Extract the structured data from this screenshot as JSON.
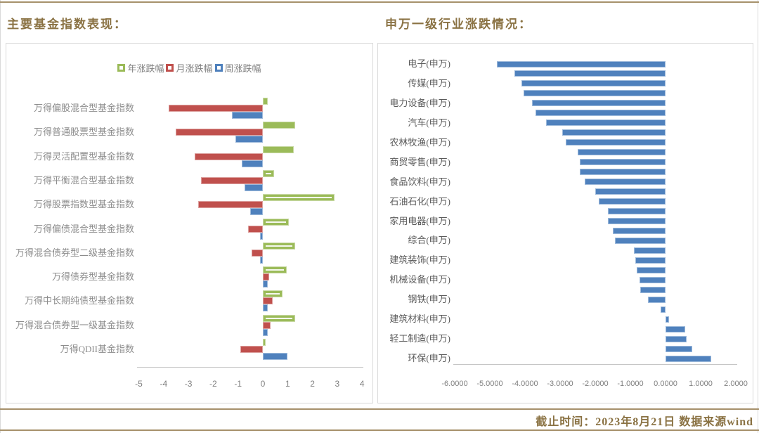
{
  "header": {
    "left_title": "主要基金指数表现：",
    "right_title": "申万一级行业涨跌情况："
  },
  "footer": {
    "text": "截止时间：2023年8月21日  数据来源wind"
  },
  "colors": {
    "accent_gold": "#8a7243",
    "rule_gold": "#a6916b",
    "year_green": "#9BBB59",
    "month_red": "#C0504D",
    "week_blue": "#4F81BD"
  },
  "chart_data": [
    {
      "type": "bar",
      "orientation": "horizontal",
      "title": "主要基金指数表现：",
      "legend_position": "top",
      "xlim": [
        -5,
        4
      ],
      "xticks": [
        -5,
        -4,
        -3,
        -2,
        -1,
        0,
        1,
        2,
        3,
        4
      ],
      "grid": false,
      "categories": [
        "万得偏股混合型基金指数",
        "万得普通股票型基金指数",
        "万得灵活配置型基金指数",
        "万得平衡混合型基金指数",
        "万得股票指数型基金指数",
        "万得偏债混合型基金指数",
        "万得混合债券型二级基金指数",
        "万得债券型基金指数",
        "万得中长期纯债型基金指数",
        "万得混合债券型一级基金指数",
        "万得QDII基金指数"
      ],
      "series": [
        {
          "name": "年涨跌幅",
          "color": "#9BBB59",
          "values": [
            0.2,
            1.3,
            1.25,
            0.45,
            2.9,
            1.05,
            1.3,
            0.95,
            0.8,
            1.3,
            0.1
          ]
        },
        {
          "name": "月涨跌幅",
          "color": "#C0504D",
          "values": [
            -3.8,
            -3.5,
            -2.75,
            -2.5,
            -2.6,
            -0.6,
            -0.45,
            0.25,
            0.4,
            0.3,
            -0.9
          ]
        },
        {
          "name": "周涨跌幅",
          "color": "#4F81BD",
          "values": [
            -1.25,
            -1.1,
            -0.85,
            -0.75,
            -0.5,
            -0.1,
            -0.1,
            0.2,
            0.2,
            0.2,
            1.0
          ]
        }
      ],
      "white_dash_on_year_rows": [
        3,
        4,
        5,
        6,
        7,
        8,
        9
      ]
    },
    {
      "type": "bar",
      "orientation": "horizontal",
      "title": "申万一级行业涨跌情况：",
      "xlim": [
        -6,
        2
      ],
      "xtick_labels": [
        "-6.0000",
        "-5.0000",
        "-4.0000",
        "-3.0000",
        "-2.0000",
        "-1.0000",
        "0.0000",
        "1.0000",
        "2.0000"
      ],
      "grid": false,
      "bar_color": "#4F81BD",
      "note": "31 bars sorted ascending; axis labels shown for every other bar only",
      "bars": [
        {
          "label": "电子(申万)",
          "value": -4.8
        },
        {
          "label": "",
          "value": -4.3
        },
        {
          "label": "传媒(申万)",
          "value": -4.1
        },
        {
          "label": "",
          "value": -4.05
        },
        {
          "label": "电力设备(申万)",
          "value": -3.8
        },
        {
          "label": "",
          "value": -3.7
        },
        {
          "label": "汽车(申万)",
          "value": -3.4
        },
        {
          "label": "",
          "value": -2.95
        },
        {
          "label": "农林牧渔(申万)",
          "value": -2.85
        },
        {
          "label": "",
          "value": -2.5
        },
        {
          "label": "商贸零售(申万)",
          "value": -2.45
        },
        {
          "label": "",
          "value": -2.45
        },
        {
          "label": "食品饮料(申万)",
          "value": -2.3
        },
        {
          "label": "",
          "value": -2.0
        },
        {
          "label": "石油石化(申万)",
          "value": -1.9
        },
        {
          "label": "",
          "value": -1.65
        },
        {
          "label": "家用电器(申万)",
          "value": -1.65
        },
        {
          "label": "",
          "value": -1.5
        },
        {
          "label": "综合(申万)",
          "value": -1.45
        },
        {
          "label": "",
          "value": -0.9
        },
        {
          "label": "建筑装饰(申万)",
          "value": -0.87
        },
        {
          "label": "",
          "value": -0.83
        },
        {
          "label": "机械设备(申万)",
          "value": -0.75
        },
        {
          "label": "",
          "value": -0.73
        },
        {
          "label": "钢铁(申万)",
          "value": -0.5
        },
        {
          "label": "",
          "value": -0.15
        },
        {
          "label": "建筑材料(申万)",
          "value": 0.1
        },
        {
          "label": "",
          "value": 0.55
        },
        {
          "label": "轻工制造(申万)",
          "value": 0.6
        },
        {
          "label": "",
          "value": 0.75
        },
        {
          "label": "环保(申万)",
          "value": 1.3
        }
      ]
    }
  ]
}
